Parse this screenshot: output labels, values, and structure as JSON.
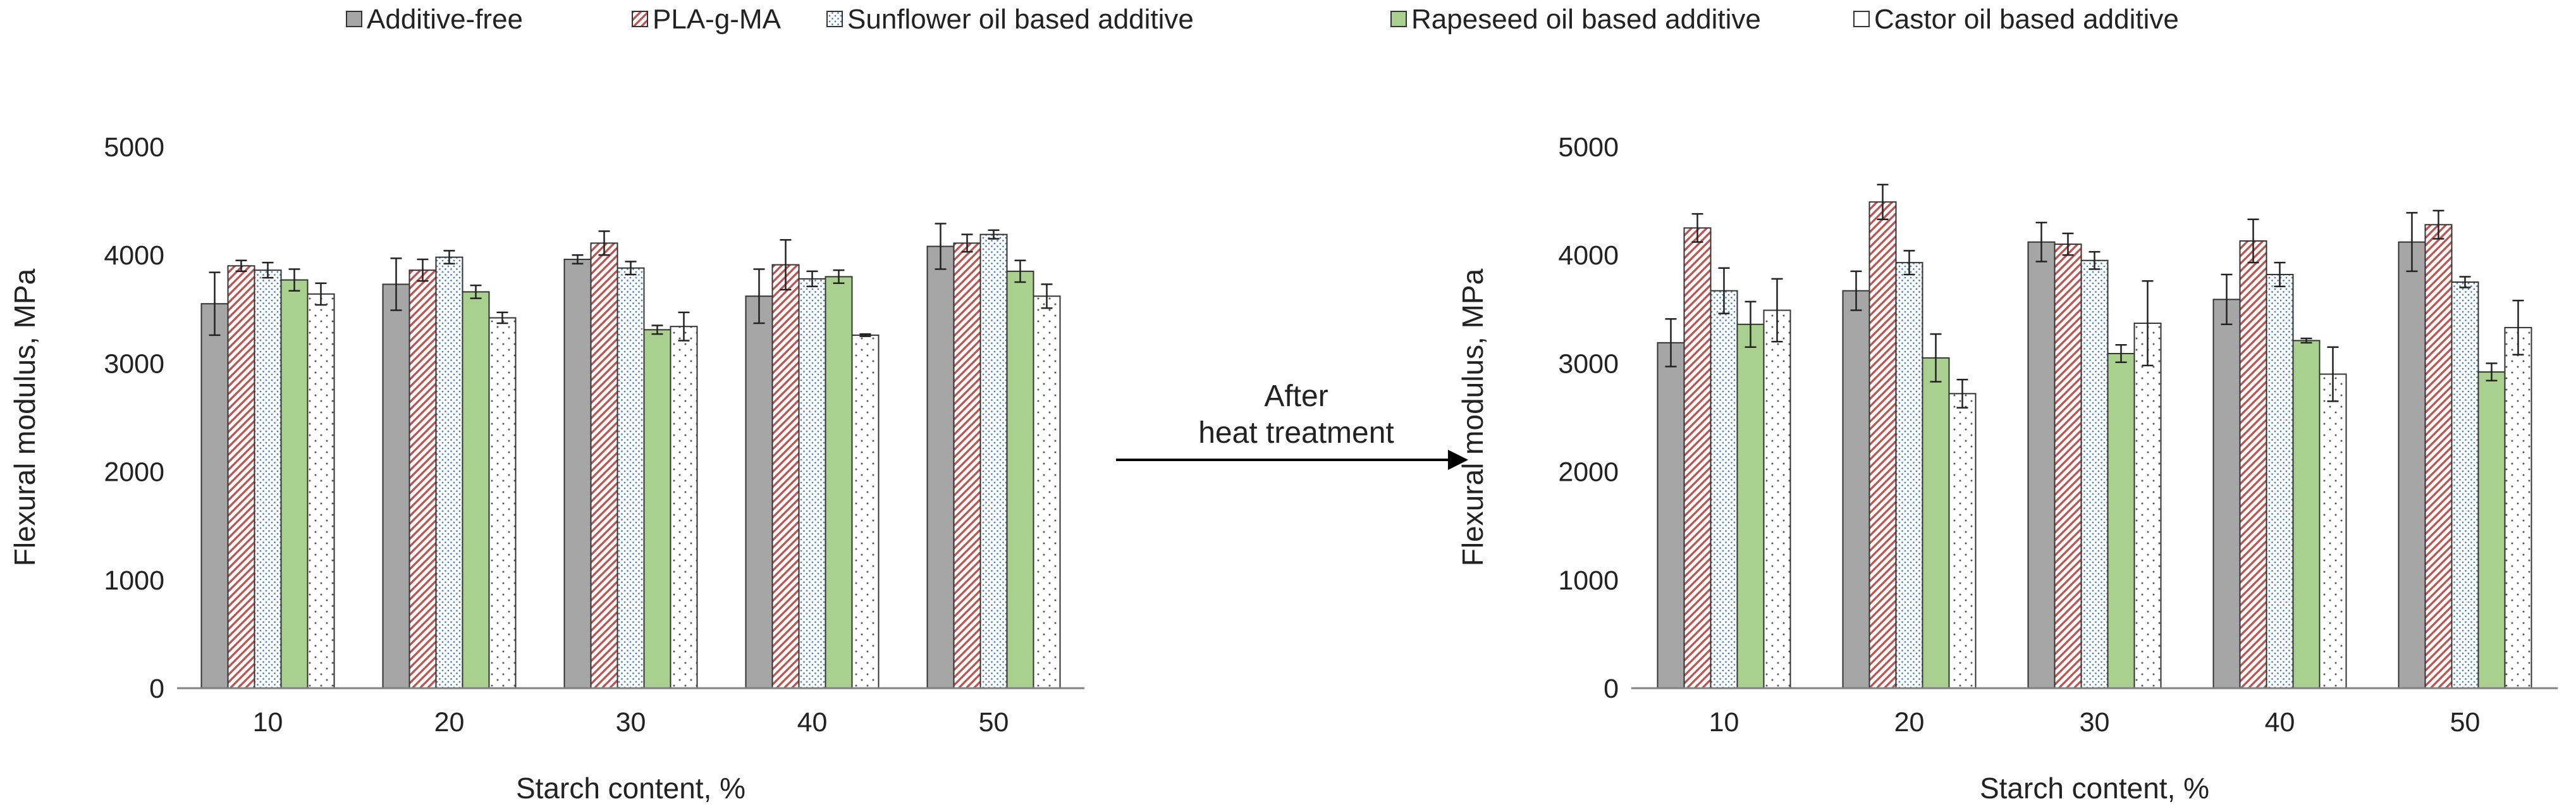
{
  "legend": {
    "items": [
      {
        "name": "Additive-free",
        "pattern": "solid-gray"
      },
      {
        "name": "PLA-g-MA",
        "pattern": "diagonal-red"
      },
      {
        "name": "Sunflower oil based additive",
        "pattern": "dots-blue"
      },
      {
        "name": "Rapeseed oil based additive",
        "pattern": "solid-green"
      },
      {
        "name": "Castor oil based additive",
        "pattern": "dots-sparse"
      }
    ]
  },
  "colors": {
    "additive_free": "#a6a6a6",
    "pla_g_ma": "#c0504d",
    "sunflower": "#4f81bd",
    "rapeseed": "#a9d08e",
    "castor": "#ffffff",
    "axis": "#808080",
    "bar_border": "#333333"
  },
  "arrow": {
    "line1": "After",
    "line2": "heat treatment"
  },
  "chart_data": [
    {
      "type": "bar",
      "title": "",
      "categories": [
        "10",
        "20",
        "30",
        "40",
        "50"
      ],
      "xlabel": "Starch content, %",
      "ylabel": "Flexural modulus, MPa",
      "ylim": [
        0,
        5000
      ],
      "yticks": [
        "0",
        "1000",
        "2000",
        "3000",
        "4000",
        "5000"
      ],
      "grid": false,
      "series": [
        {
          "name": "Additive-free",
          "values": [
            3550,
            3730,
            3960,
            3620,
            4080
          ],
          "errors": [
            290,
            240,
            40,
            250,
            210
          ]
        },
        {
          "name": "PLA-g-MA",
          "values": [
            3900,
            3860,
            4110,
            3910,
            4110
          ],
          "errors": [
            50,
            100,
            110,
            230,
            80
          ]
        },
        {
          "name": "Sunflower oil based additive",
          "values": [
            3860,
            3980,
            3880,
            3780,
            4190
          ],
          "errors": [
            70,
            60,
            60,
            70,
            40
          ]
        },
        {
          "name": "Rapeseed oil based additive",
          "values": [
            3770,
            3660,
            3310,
            3800,
            3850
          ],
          "errors": [
            100,
            60,
            40,
            60,
            100
          ]
        },
        {
          "name": "Castor oil based additive",
          "values": [
            3640,
            3420,
            3340,
            3260,
            3620
          ],
          "errors": [
            100,
            50,
            130,
            10,
            110
          ]
        }
      ]
    },
    {
      "type": "bar",
      "title": "",
      "categories": [
        "10",
        "20",
        "30",
        "40",
        "50"
      ],
      "xlabel": "Starch content, %",
      "ylabel": "Flexural modulus, MPa",
      "ylim": [
        0,
        5000
      ],
      "yticks": [
        "0",
        "1000",
        "2000",
        "3000",
        "4000",
        "5000"
      ],
      "grid": false,
      "series": [
        {
          "name": "Additive-free",
          "values": [
            3190,
            3670,
            4120,
            3590,
            4120
          ],
          "errors": [
            220,
            180,
            180,
            230,
            270
          ]
        },
        {
          "name": "PLA-g-MA",
          "values": [
            4250,
            4490,
            4100,
            4130,
            4280
          ],
          "errors": [
            130,
            160,
            100,
            200,
            130
          ]
        },
        {
          "name": "Sunflower oil based additive",
          "values": [
            3670,
            3930,
            3950,
            3820,
            3750
          ],
          "errors": [
            210,
            110,
            80,
            110,
            50
          ]
        },
        {
          "name": "Rapeseed oil based additive",
          "values": [
            3360,
            3050,
            3090,
            3210,
            2920
          ],
          "errors": [
            210,
            220,
            80,
            20,
            80
          ]
        },
        {
          "name": "Castor oil based additive",
          "values": [
            3490,
            2720,
            3370,
            2900,
            3330
          ],
          "errors": [
            290,
            130,
            390,
            250,
            250
          ]
        }
      ]
    }
  ]
}
